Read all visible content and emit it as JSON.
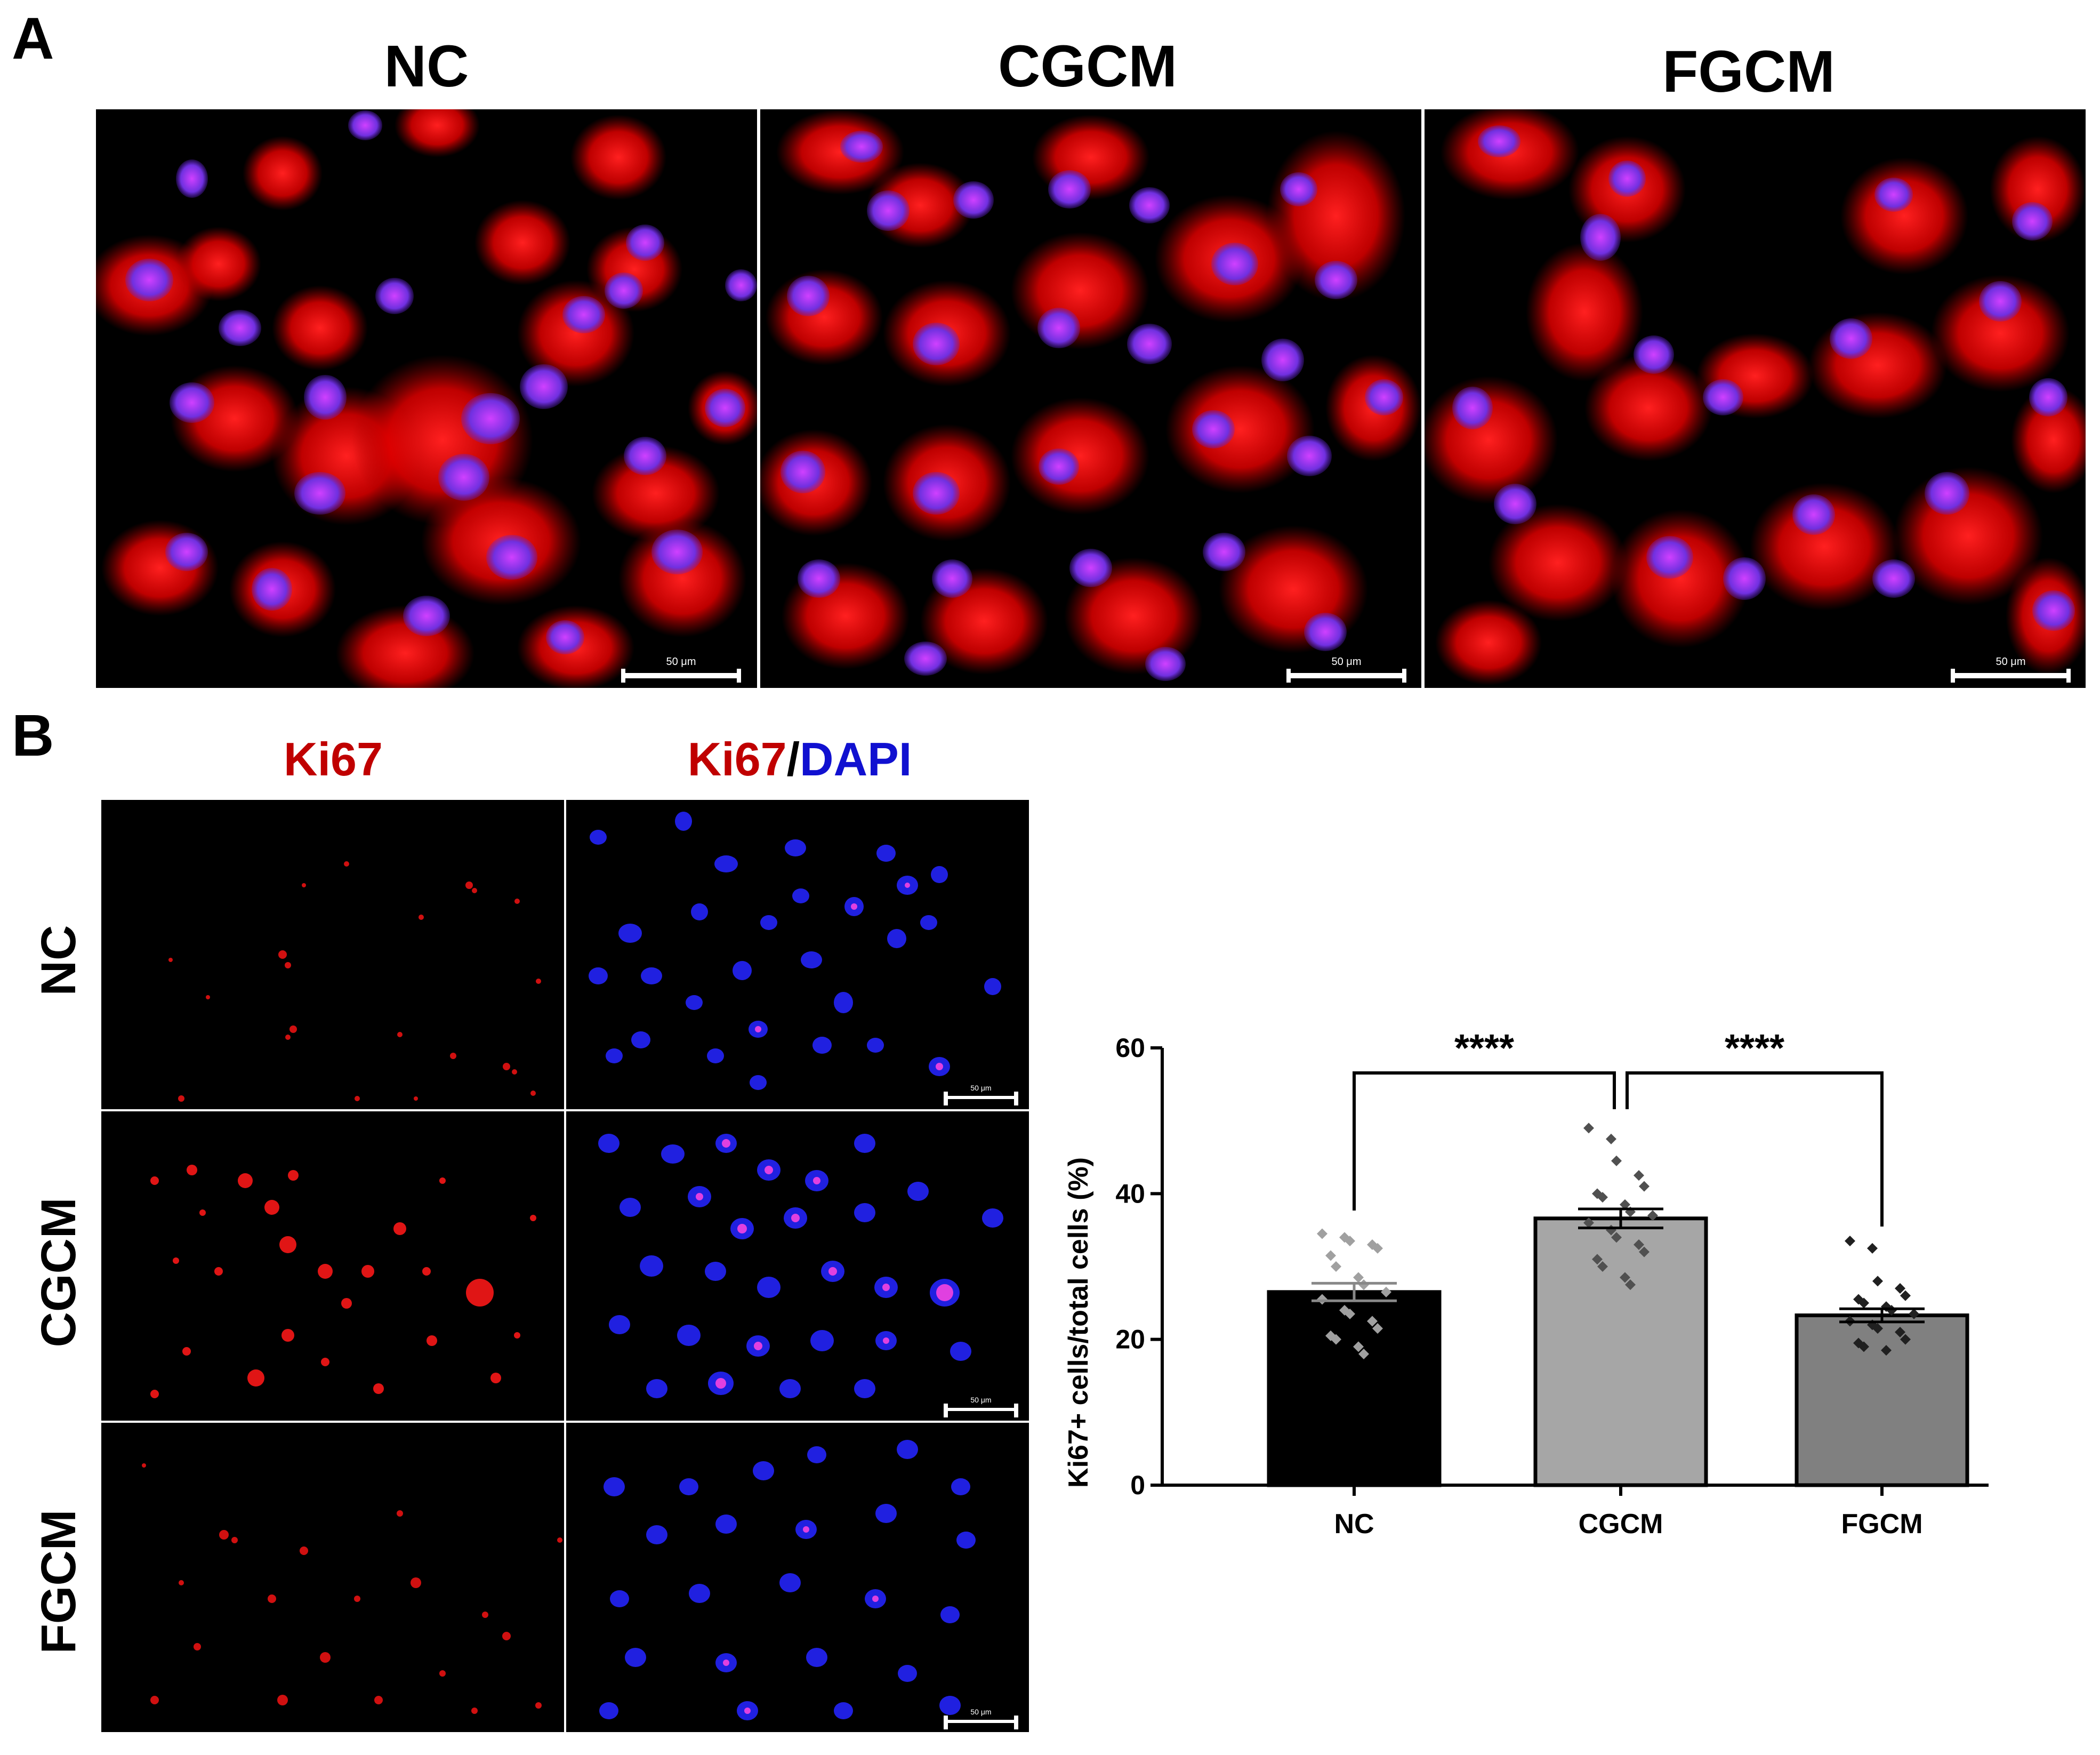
{
  "panel_a": {
    "letter": "A",
    "columns": [
      "NC",
      "CGCM",
      "FGCM"
    ],
    "scale_label": "50 μm"
  },
  "panel_b": {
    "letter": "B",
    "channel_ki67": "Ki67",
    "channel_slash": "/",
    "channel_dapi": "DAPI",
    "rows": [
      "NC",
      "CGCM",
      "FGCM"
    ],
    "scale_label": "50 μm"
  },
  "colors": {
    "ki67_red": "#c00000",
    "dapi_blue": "#1010d0",
    "bar_nc": "#000000",
    "bar_cgcm": "#a6a6a6",
    "bar_fgcm": "#808080"
  },
  "chart_data": {
    "type": "bar",
    "categories": [
      "NC",
      "CGCM",
      "FGCM"
    ],
    "values": [
      26.5,
      36.6,
      23.3
    ],
    "sem": [
      1.2,
      1.3,
      0.9
    ],
    "points": {
      "NC": [
        34.5,
        34,
        33.5,
        33,
        32.5,
        31.5,
        30,
        28.5,
        27.5,
        26.5,
        25.5,
        24,
        23.5,
        22.5,
        21.5,
        20.5,
        20,
        19,
        18
      ],
      "CGCM": [
        49,
        47.5,
        44.5,
        42.5,
        41,
        40,
        39.5,
        38.5,
        37.5,
        37,
        36,
        35,
        34,
        33,
        32,
        31,
        30,
        28.5,
        27.5
      ],
      "FGCM": [
        33.5,
        32.5,
        28,
        27,
        26,
        25.5,
        25,
        24.5,
        24,
        23.5,
        22.5,
        22,
        21.5,
        21,
        20,
        19.5,
        19,
        18.5
      ]
    },
    "xlabel": "",
    "ylabel": "Ki67+ cells/total cells (%)",
    "ylim": [
      0,
      60
    ],
    "yticks": [
      "0",
      "20",
      "40",
      "60"
    ],
    "significance": [
      {
        "from": "NC",
        "to": "CGCM",
        "label": "****"
      },
      {
        "from": "CGCM",
        "to": "FGCM",
        "label": "****"
      }
    ],
    "grid": false,
    "legend": "none"
  }
}
